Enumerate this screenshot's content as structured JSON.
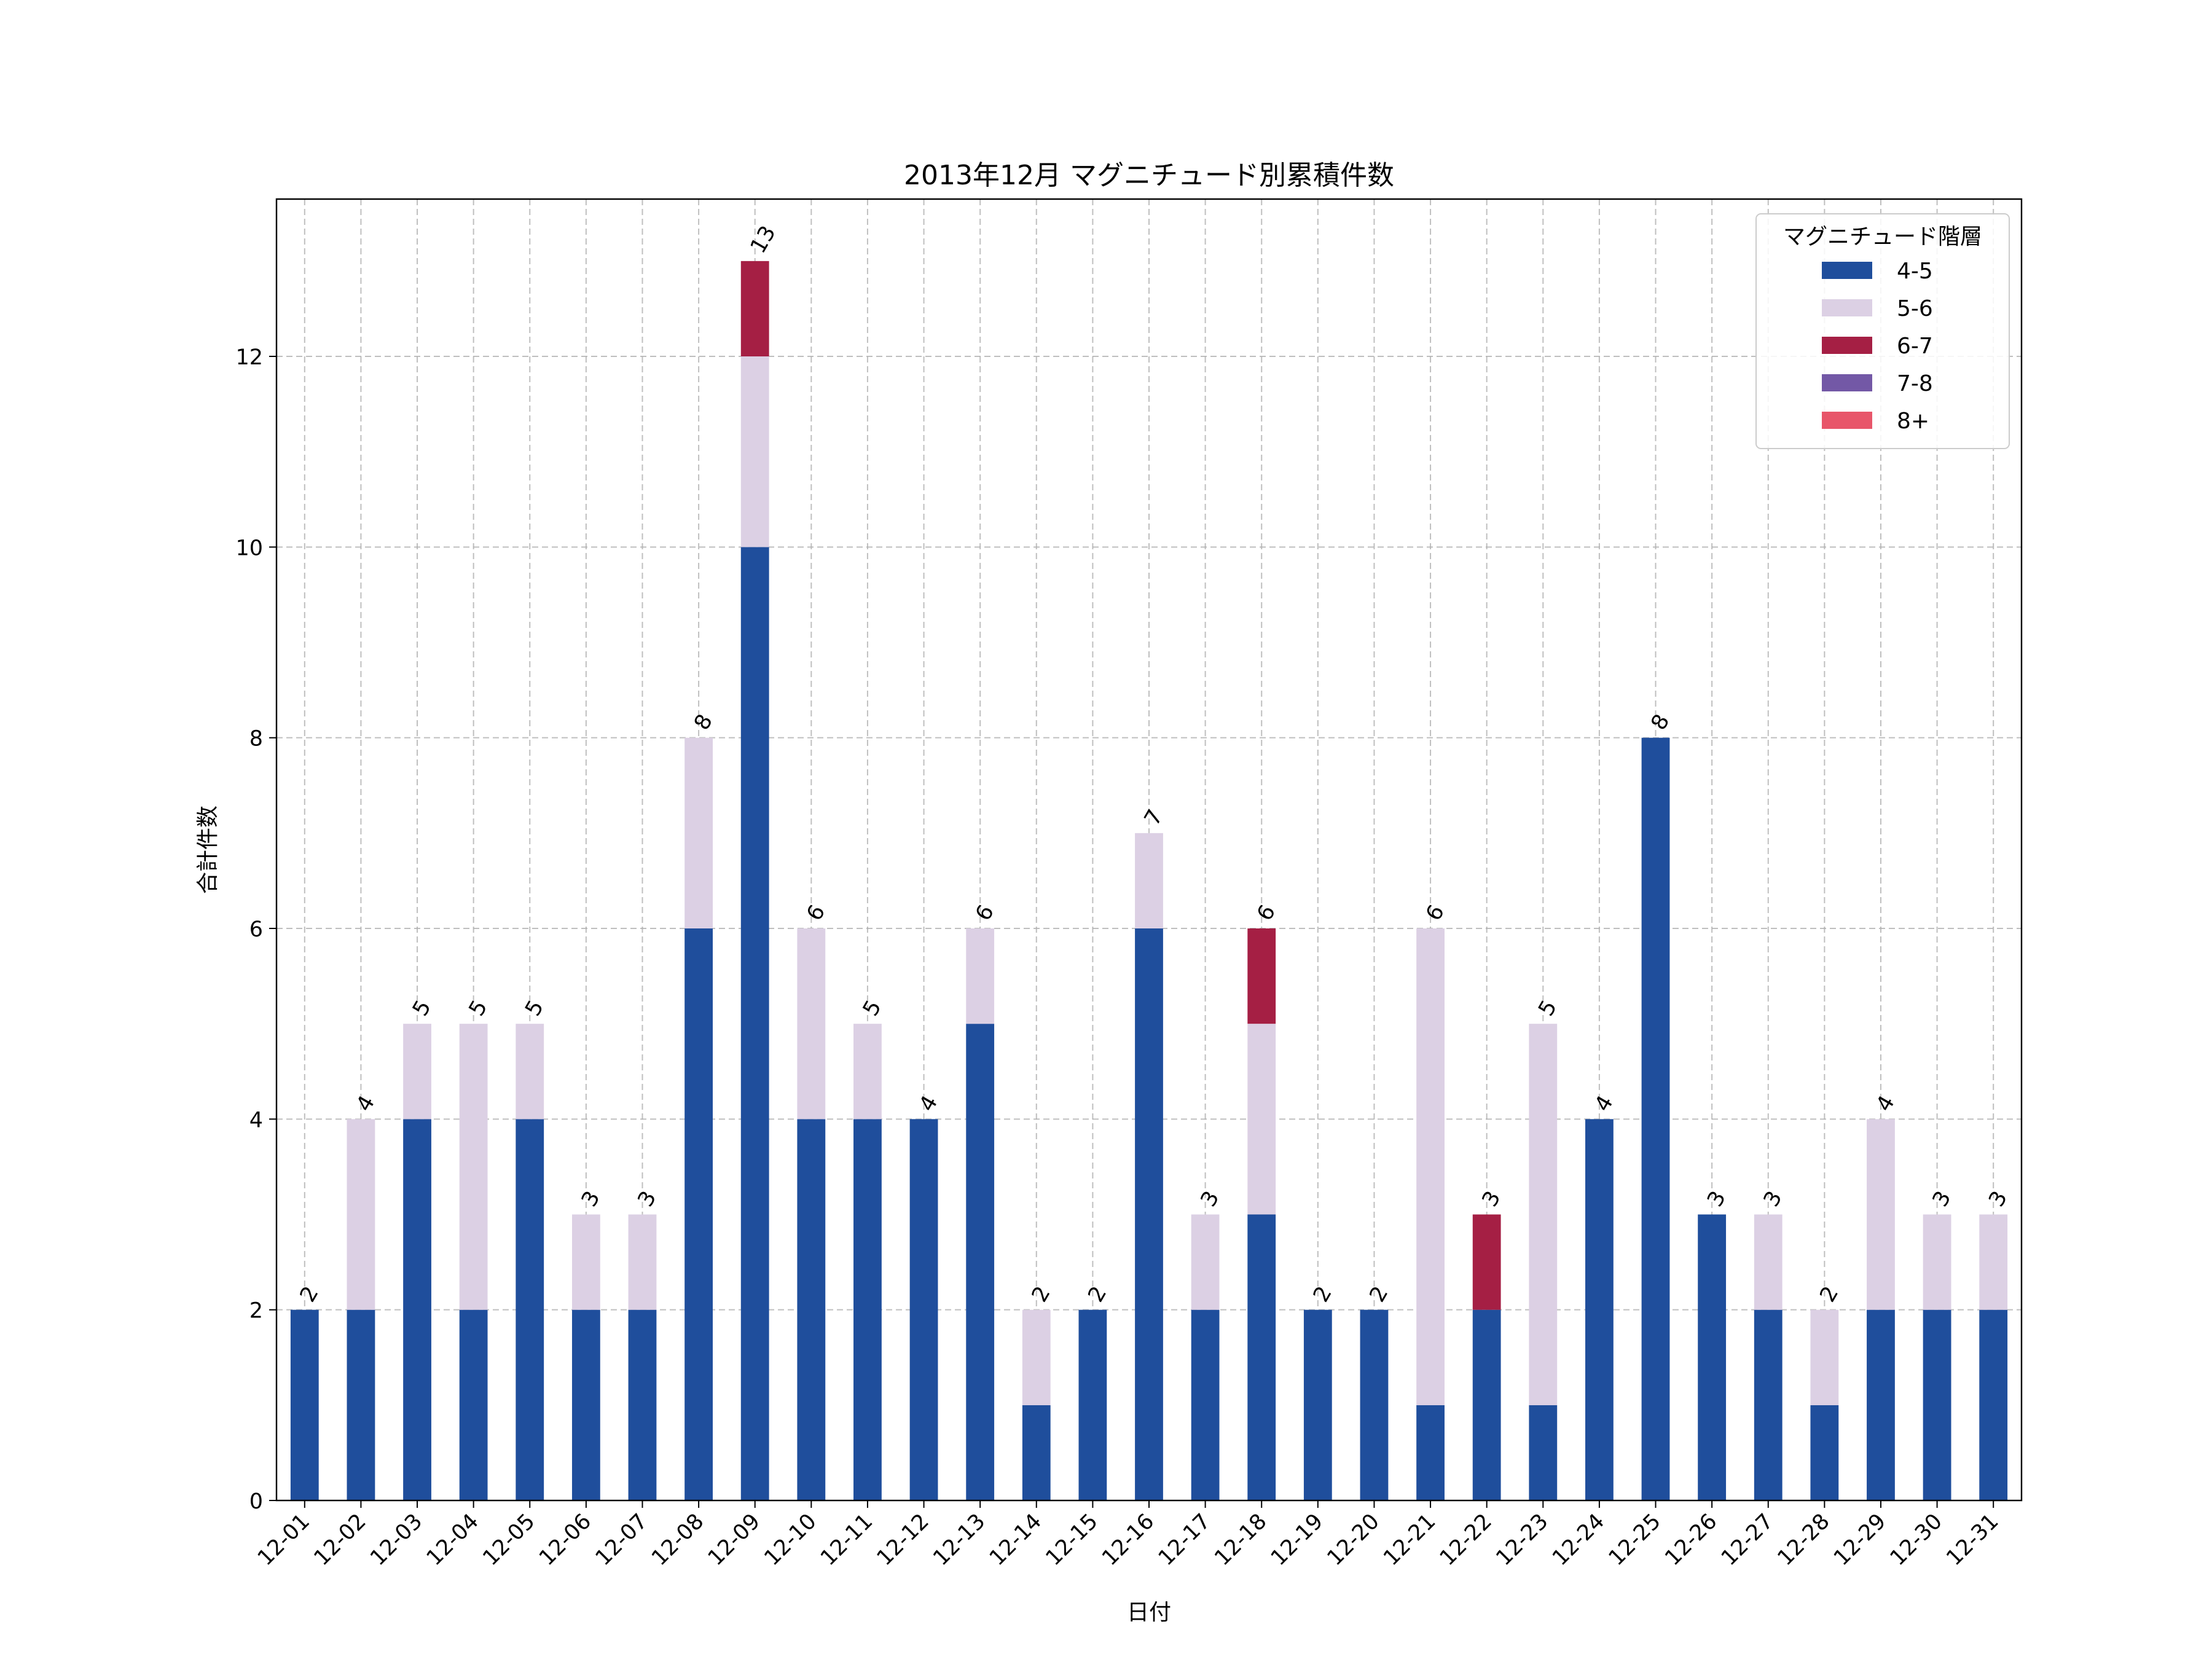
{
  "chart_data": {
    "type": "bar",
    "stacked": true,
    "title": "2013年12月 マグニチュード別累積件数",
    "xlabel": "日付",
    "ylabel": "合計件数",
    "ylim": [
      0,
      13.65
    ],
    "yticks": [
      0,
      2,
      4,
      6,
      8,
      10,
      12
    ],
    "grid": true,
    "legend": {
      "title": "マグニチュード階層",
      "placement": "top-right"
    },
    "categories": [
      "12-01",
      "12-02",
      "12-03",
      "12-04",
      "12-05",
      "12-06",
      "12-07",
      "12-08",
      "12-09",
      "12-10",
      "12-11",
      "12-12",
      "12-13",
      "12-14",
      "12-15",
      "12-16",
      "12-17",
      "12-18",
      "12-19",
      "12-20",
      "12-21",
      "12-22",
      "12-23",
      "12-24",
      "12-25",
      "12-26",
      "12-27",
      "12-28",
      "12-29",
      "12-30",
      "12-31"
    ],
    "series": [
      {
        "name": "4-5",
        "color": "#1f4e9c",
        "values": [
          2,
          2,
          4,
          2,
          4,
          2,
          2,
          6,
          10,
          4,
          4,
          4,
          5,
          1,
          2,
          6,
          2,
          3,
          2,
          2,
          1,
          2,
          1,
          4,
          8,
          3,
          2,
          1,
          2,
          2,
          2
        ]
      },
      {
        "name": "5-6",
        "color": "#dcd0e4",
        "values": [
          0,
          2,
          1,
          3,
          1,
          1,
          1,
          2,
          2,
          2,
          1,
          0,
          1,
          1,
          0,
          1,
          1,
          2,
          0,
          0,
          5,
          0,
          4,
          0,
          0,
          0,
          1,
          1,
          2,
          1,
          1
        ]
      },
      {
        "name": "6-7",
        "color": "#a51f44",
        "values": [
          0,
          0,
          0,
          0,
          0,
          0,
          0,
          0,
          1,
          0,
          0,
          0,
          0,
          0,
          0,
          0,
          0,
          1,
          0,
          0,
          0,
          1,
          0,
          0,
          0,
          0,
          0,
          0,
          0,
          0,
          0
        ]
      },
      {
        "name": "7-8",
        "color": "#7358a6",
        "values": [
          0,
          0,
          0,
          0,
          0,
          0,
          0,
          0,
          0,
          0,
          0,
          0,
          0,
          0,
          0,
          0,
          0,
          0,
          0,
          0,
          0,
          0,
          0,
          0,
          0,
          0,
          0,
          0,
          0,
          0,
          0
        ]
      },
      {
        "name": "8+",
        "color": "#e8566a",
        "values": [
          0,
          0,
          0,
          0,
          0,
          0,
          0,
          0,
          0,
          0,
          0,
          0,
          0,
          0,
          0,
          0,
          0,
          0,
          0,
          0,
          0,
          0,
          0,
          0,
          0,
          0,
          0,
          0,
          0,
          0,
          0
        ]
      }
    ],
    "totals": [
      2,
      4,
      5,
      5,
      5,
      3,
      3,
      8,
      13,
      6,
      5,
      4,
      6,
      2,
      2,
      7,
      3,
      6,
      2,
      2,
      6,
      3,
      5,
      4,
      8,
      3,
      3,
      2,
      4,
      3,
      3
    ]
  }
}
